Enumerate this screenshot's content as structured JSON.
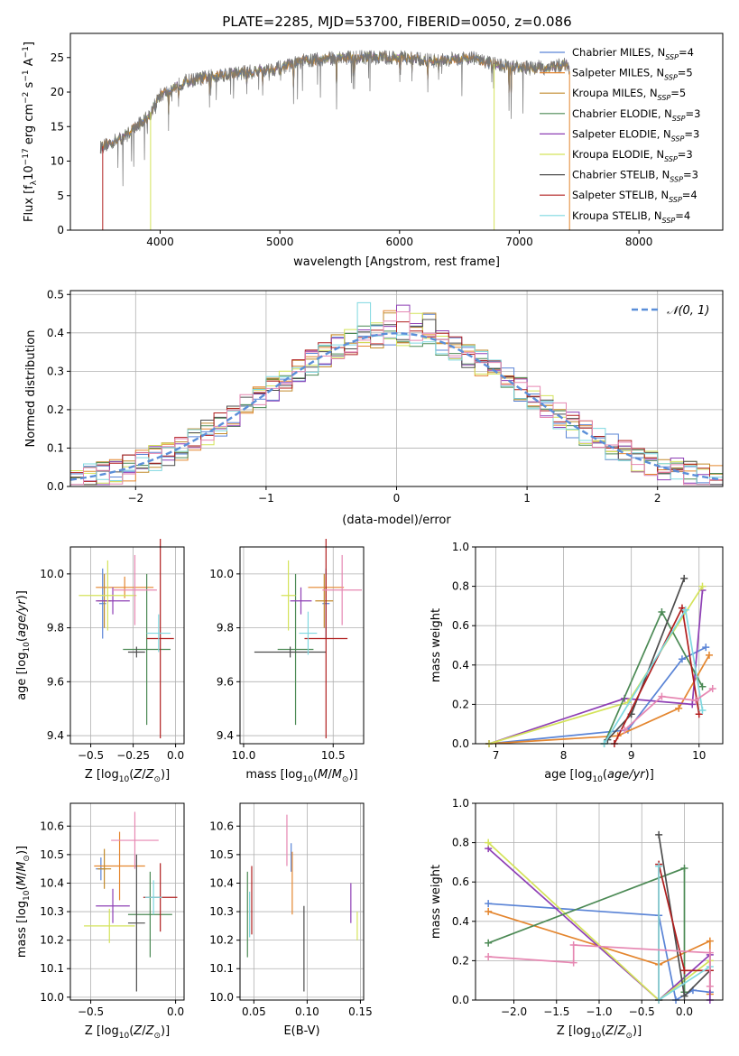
{
  "figure_title": "PLATE=2285, MJD=53700, FIBERID=0050, z=0.086",
  "colors": {
    "Chabrier MILES": "#5a84d6",
    "Salpeter MILES": "#e4862f",
    "Kroupa MILES": "#c28a2b",
    "Chabrier ELODIE": "#4c8a55",
    "Salpeter ELODIE": "#8e3fb5",
    "Kroupa ELODIE": "#d4e35a",
    "Chabrier STELIB": "#4d4d4d",
    "Salpeter STELIB": "#b01e1e",
    "Kroupa STELIB": "#7fd8e0",
    "pink": "#e687b2",
    "gauss": "#5b8fd9",
    "grid": "#b0b0b0"
  },
  "chart_data": [
    {
      "id": "spectrum",
      "type": "line",
      "xlabel": "wavelength [Angstrom, rest frame]",
      "ylabel": "Flux [f_λ10^-17 erg cm^-2 s^-1 A^-1]",
      "xlim": [
        3250,
        8700
      ],
      "ylim": [
        0,
        28.5
      ],
      "xticks": [
        4000,
        5000,
        6000,
        7000,
        8000
      ],
      "yticks": [
        0,
        5,
        10,
        15,
        20,
        25
      ],
      "grid": false,
      "legend_position": "top-right",
      "legend": [
        {
          "label": "Chabrier MILES, N",
          "sub": "SSP",
          "tail": "=4",
          "color": "#5a84d6"
        },
        {
          "label": "Salpeter MILES, N",
          "sub": "SSP",
          "tail": "=5",
          "color": "#e4862f"
        },
        {
          "label": "Kroupa MILES, N",
          "sub": "SSP",
          "tail": "=5",
          "color": "#c28a2b"
        },
        {
          "label": "Chabrier ELODIE, N",
          "sub": "SSP",
          "tail": "=3",
          "color": "#4c8a55"
        },
        {
          "label": "Salpeter ELODIE, N",
          "sub": "SSP",
          "tail": "=3",
          "color": "#8e3fb5"
        },
        {
          "label": "Kroupa ELODIE, N",
          "sub": "SSP",
          "tail": "=3",
          "color": "#d4e35a"
        },
        {
          "label": "Chabrier STELIB, N",
          "sub": "SSP",
          "tail": "=3",
          "color": "#4d4d4d"
        },
        {
          "label": "Salpeter STELIB, N",
          "sub": "SSP",
          "tail": "=4",
          "color": "#b01e1e"
        },
        {
          "label": "Kroupa STELIB, N",
          "sub": "SSP",
          "tail": "=4",
          "color": "#7fd8e0"
        }
      ],
      "continuum": {
        "x": [
          3500,
          3700,
          3900,
          4000,
          4200,
          4500,
          4800,
          5000,
          5200,
          5500,
          5800,
          6000,
          6300,
          6600,
          6800,
          7000,
          7200,
          7400,
          7420
        ],
        "y": [
          12.0,
          13.5,
          16.5,
          19.5,
          21.5,
          22.5,
          23.0,
          23.5,
          24.5,
          25.0,
          25.0,
          25.0,
          24.5,
          25.0,
          24.0,
          23.5,
          23.5,
          24.0,
          23.0
        ]
      },
      "drops": [
        {
          "x": 3520,
          "color": "#b01e1e"
        },
        {
          "x": 3920,
          "color": "#d4e35a"
        },
        {
          "x": 6790,
          "color": "#d4e35a"
        },
        {
          "x": 7420,
          "color": "#e4862f"
        }
      ]
    },
    {
      "id": "residuals",
      "type": "histogram",
      "xlabel": "(data-model)/error",
      "ylabel": "Normed distribution",
      "xlim": [
        -2.5,
        2.5
      ],
      "ylim": [
        0,
        0.51
      ],
      "xticks": [
        -2,
        -1,
        0,
        1,
        2
      ],
      "yticks": [
        0.0,
        0.1,
        0.2,
        0.3,
        0.4,
        0.5
      ],
      "grid": true,
      "legend": [
        {
          "label": "𝒩(0, 1)",
          "color": "#5b8fd9",
          "style": "dashed"
        }
      ],
      "legend_position": "top-right",
      "bin_width": 0.1
    },
    {
      "id": "age_vs_Z",
      "type": "errorbar",
      "xlabel": "Z [log10(Z/Z⊙)]",
      "ylabel": "age  [log10(age/yr)]",
      "xlim": [
        -0.62,
        0.05
      ],
      "ylim": [
        9.37,
        10.1
      ],
      "xticks": [
        -0.5,
        -0.25,
        0.0
      ],
      "xticklabels": [
        "−0.5",
        "−0.25",
        "0.0"
      ],
      "yticks": [
        9.4,
        9.6,
        9.8,
        10.0
      ],
      "grid": true,
      "points": [
        {
          "color": "#5a84d6",
          "x": -0.43,
          "xerr": 0.02,
          "y": 9.89,
          "yerr": 0.13
        },
        {
          "color": "#e4862f",
          "x": -0.3,
          "xerr": 0.17,
          "y": 9.95,
          "yerr": 0.04
        },
        {
          "color": "#c28a2b",
          "x": -0.42,
          "xerr": 0.04,
          "y": 9.9,
          "yerr": 0.1
        },
        {
          "color": "#4c8a55",
          "x": -0.17,
          "xerr": 0.14,
          "y": 9.72,
          "yerr": 0.28
        },
        {
          "color": "#8e3fb5",
          "x": -0.37,
          "xerr": 0.1,
          "y": 9.9,
          "yerr": 0.05
        },
        {
          "color": "#d4e35a",
          "x": -0.4,
          "xerr": 0.17,
          "y": 9.92,
          "yerr": 0.13
        },
        {
          "color": "#4d4d4d",
          "x": -0.23,
          "xerr": 0.05,
          "y": 9.71,
          "yerr": 0.02
        },
        {
          "color": "#b01e1e",
          "x": -0.09,
          "xerr": 0.08,
          "y": 9.76,
          "yerr": 0.37
        },
        {
          "color": "#7fd8e0",
          "x": -0.1,
          "xerr": 0.07,
          "y": 9.78,
          "yerr": 0.07
        },
        {
          "color": "#e687b2",
          "x": -0.24,
          "xerr": 0.13,
          "y": 9.94,
          "yerr": 0.13
        }
      ]
    },
    {
      "id": "age_vs_mass",
      "type": "errorbar",
      "xlabel": "mass [log10(M/M⊙)]",
      "ylabel": "",
      "xlim": [
        9.98,
        10.67
      ],
      "ylim": [
        9.37,
        10.1
      ],
      "xticks": [
        10.0,
        10.5
      ],
      "xticklabels": [
        "10.0",
        "10.5"
      ],
      "yticks": [
        9.4,
        9.6,
        9.8,
        10.0
      ],
      "grid": true,
      "points": [
        {
          "color": "#5a84d6",
          "x": 10.46,
          "xerr": 0.02,
          "y": 9.89,
          "yerr": 0.13
        },
        {
          "color": "#e4862f",
          "x": 10.46,
          "xerr": 0.1,
          "y": 9.95,
          "yerr": 0.04
        },
        {
          "color": "#c28a2b",
          "x": 10.45,
          "xerr": 0.05,
          "y": 9.9,
          "yerr": 0.1
        },
        {
          "color": "#4c8a55",
          "x": 10.29,
          "xerr": 0.1,
          "y": 9.72,
          "yerr": 0.28
        },
        {
          "color": "#8e3fb5",
          "x": 10.32,
          "xerr": 0.06,
          "y": 9.9,
          "yerr": 0.05
        },
        {
          "color": "#d4e35a",
          "x": 10.25,
          "xerr": 0.04,
          "y": 9.92,
          "yerr": 0.13
        },
        {
          "color": "#4d4d4d",
          "x": 10.26,
          "xerr": 0.2,
          "y": 9.71,
          "yerr": 0.02
        },
        {
          "color": "#b01e1e",
          "x": 10.46,
          "xerr": 0.12,
          "y": 9.76,
          "yerr": 0.37
        },
        {
          "color": "#7fd8e0",
          "x": 10.36,
          "xerr": 0.05,
          "y": 9.78,
          "yerr": 0.08
        },
        {
          "color": "#e687b2",
          "x": 10.55,
          "xerr": 0.11,
          "y": 9.94,
          "yerr": 0.13
        }
      ]
    },
    {
      "id": "weight_vs_age",
      "type": "line",
      "xlabel": "age  [log10(age/yr)]",
      "ylabel": "mass weight",
      "xlim": [
        6.7,
        10.35
      ],
      "ylim": [
        0.0,
        1.0
      ],
      "xticks": [
        7,
        8,
        9,
        10
      ],
      "yticks": [
        0.0,
        0.2,
        0.4,
        0.6,
        0.8,
        1.0
      ],
      "grid": true,
      "series": [
        {
          "color": "#5a84d6",
          "x": [
            6.9,
            8.95,
            9.75,
            10.1
          ],
          "y": [
            0.0,
            0.07,
            0.43,
            0.49
          ]
        },
        {
          "color": "#e4862f",
          "x": [
            6.9,
            8.8,
            9.7,
            10.15
          ],
          "y": [
            0.0,
            0.04,
            0.18,
            0.45
          ]
        },
        {
          "color": "#8e3fb5",
          "x": [
            6.9,
            8.9,
            9.9,
            10.05
          ],
          "y": [
            0.0,
            0.23,
            0.2,
            0.78
          ]
        },
        {
          "color": "#d4e35a",
          "x": [
            6.9,
            8.95,
            10.05
          ],
          "y": [
            0.0,
            0.21,
            0.8
          ]
        },
        {
          "color": "#4c8a55",
          "x": [
            8.6,
            9.45,
            10.05
          ],
          "y": [
            0.0,
            0.67,
            0.29
          ]
        },
        {
          "color": "#4d4d4d",
          "x": [
            8.65,
            9.0,
            9.78
          ],
          "y": [
            0.02,
            0.15,
            0.84
          ]
        },
        {
          "color": "#b01e1e",
          "x": [
            8.75,
            9.75,
            10.0
          ],
          "y": [
            0.0,
            0.69,
            0.15
          ]
        },
        {
          "color": "#7fd8e0",
          "x": [
            8.6,
            9.8,
            10.05
          ],
          "y": [
            0.0,
            0.68,
            0.17
          ]
        },
        {
          "color": "#e687b2",
          "x": [
            8.9,
            9.45,
            9.95,
            10.2
          ],
          "y": [
            0.07,
            0.24,
            0.22,
            0.28
          ]
        }
      ]
    },
    {
      "id": "mass_vs_Z",
      "type": "errorbar",
      "xlabel": "Z [log10(Z/Z⊙)]",
      "ylabel": "mass [log10(M/M⊙)]",
      "xlim": [
        -0.62,
        0.05
      ],
      "ylim": [
        9.99,
        10.68
      ],
      "xticks": [
        -0.5,
        0.0
      ],
      "xticklabels": [
        "−0.5",
        "0.0"
      ],
      "yticks": [
        10.0,
        10.1,
        10.2,
        10.3,
        10.4,
        10.5,
        10.6
      ],
      "grid": true,
      "points": [
        {
          "color": "#5a84d6",
          "x": -0.44,
          "xerr": 0.03,
          "y": 10.45,
          "yerr": 0.04
        },
        {
          "color": "#e4862f",
          "x": -0.33,
          "xerr": 0.15,
          "y": 10.46,
          "yerr": 0.12
        },
        {
          "color": "#c28a2b",
          "x": -0.42,
          "xerr": 0.04,
          "y": 10.45,
          "yerr": 0.07
        },
        {
          "color": "#4c8a55",
          "x": -0.15,
          "xerr": 0.13,
          "y": 10.29,
          "yerr": 0.15
        },
        {
          "color": "#8e3fb5",
          "x": -0.37,
          "xerr": 0.1,
          "y": 10.32,
          "yerr": 0.06
        },
        {
          "color": "#d4e35a",
          "x": -0.39,
          "xerr": 0.15,
          "y": 10.25,
          "yerr": 0.06
        },
        {
          "color": "#4d4d4d",
          "x": -0.23,
          "xerr": 0.05,
          "y": 10.26,
          "yerr": 0.24
        },
        {
          "color": "#b01e1e",
          "x": -0.09,
          "xerr": 0.1,
          "y": 10.35,
          "yerr": 0.12
        },
        {
          "color": "#7fd8e0",
          "x": -0.13,
          "xerr": 0.05,
          "y": 10.35,
          "yerr": 0.06
        },
        {
          "color": "#e687b2",
          "x": -0.24,
          "xerr": 0.14,
          "y": 10.55,
          "yerr": 0.1
        }
      ]
    },
    {
      "id": "mass_vs_ebv",
      "type": "errorbar",
      "xlabel": "E(B-V)",
      "ylabel": "",
      "xlim": [
        0.037,
        0.153
      ],
      "ylim": [
        9.99,
        10.68
      ],
      "xticks": [
        0.05,
        0.1,
        0.15
      ],
      "xticklabels": [
        "0.05",
        "0.10",
        "0.15"
      ],
      "yticks": [
        10.0,
        10.1,
        10.2,
        10.3,
        10.4,
        10.5,
        10.6
      ],
      "grid": true,
      "points": [
        {
          "color": "#5a84d6",
          "x": 0.085,
          "xerr": 0.0,
          "y": 10.49,
          "yerr": 0.05
        },
        {
          "color": "#e4862f",
          "x": 0.086,
          "xerr": 0.0,
          "y": 10.4,
          "yerr": 0.11
        },
        {
          "color": "#4c8a55",
          "x": 0.044,
          "xerr": 0.0,
          "y": 10.29,
          "yerr": 0.15
        },
        {
          "color": "#8e3fb5",
          "x": 0.141,
          "xerr": 0.0,
          "y": 10.33,
          "yerr": 0.07
        },
        {
          "color": "#d4e35a",
          "x": 0.147,
          "xerr": 0.0,
          "y": 10.25,
          "yerr": 0.05
        },
        {
          "color": "#4d4d4d",
          "x": 0.097,
          "xerr": 0.0,
          "y": 10.17,
          "yerr": 0.15
        },
        {
          "color": "#b01e1e",
          "x": 0.048,
          "xerr": 0.0,
          "y": 10.34,
          "yerr": 0.12
        },
        {
          "color": "#7fd8e0",
          "x": 0.046,
          "xerr": 0.0,
          "y": 10.29,
          "yerr": 0.08
        },
        {
          "color": "#e687b2",
          "x": 0.081,
          "xerr": 0.0,
          "y": 10.55,
          "yerr": 0.09
        }
      ]
    },
    {
      "id": "weight_vs_Z",
      "type": "line",
      "xlabel": "Z [log10(Z/Z⊙)]",
      "ylabel": "mass weight",
      "xlim": [
        -2.45,
        0.45
      ],
      "ylim": [
        0.0,
        1.0
      ],
      "xticks": [
        -2.0,
        -1.5,
        -1.0,
        -0.5,
        0.0
      ],
      "xticklabels": [
        "−2.0",
        "−1.5",
        "−1.0",
        "−0.5",
        "0.0"
      ],
      "yticks": [
        0.0,
        0.2,
        0.4,
        0.6,
        0.8,
        1.0
      ],
      "grid": true,
      "series": [
        {
          "color": "#5a84d6",
          "x": [
            -2.3,
            -0.3,
            -0.1,
            0.1,
            0.3
          ],
          "y": [
            0.49,
            0.43,
            0.0,
            0.05,
            0.04
          ]
        },
        {
          "color": "#e4862f",
          "x": [
            -2.3,
            -0.3,
            0.3,
            0.3
          ],
          "y": [
            0.45,
            0.18,
            0.3,
            0.03
          ]
        },
        {
          "color": "#8e3fb5",
          "x": [
            -2.3,
            -0.3,
            0.3,
            0.3
          ],
          "y": [
            0.77,
            0.0,
            0.23,
            0.0
          ]
        },
        {
          "color": "#d4e35a",
          "x": [
            -2.3,
            -0.3,
            0.3
          ],
          "y": [
            0.8,
            0.0,
            0.2
          ]
        },
        {
          "color": "#4c8a55",
          "x": [
            -2.3,
            0.0,
            0.0
          ],
          "y": [
            0.29,
            0.67,
            0.04
          ]
        },
        {
          "color": "#4d4d4d",
          "x": [
            -0.3,
            0.0,
            0.3
          ],
          "y": [
            0.84,
            0.02,
            0.15
          ]
        },
        {
          "color": "#b01e1e",
          "x": [
            -0.3,
            -0.3,
            0.0,
            0.3
          ],
          "y": [
            0.0,
            0.69,
            0.15,
            0.15
          ]
        },
        {
          "color": "#7fd8e0",
          "x": [
            -0.3,
            -0.3,
            0.3
          ],
          "y": [
            0.68,
            0.0,
            0.17
          ]
        },
        {
          "color": "#e687b2",
          "x": [
            -2.3,
            -1.3,
            -1.3,
            0.3,
            0.3
          ],
          "y": [
            0.22,
            0.19,
            0.28,
            0.24,
            0.07
          ]
        }
      ]
    }
  ]
}
